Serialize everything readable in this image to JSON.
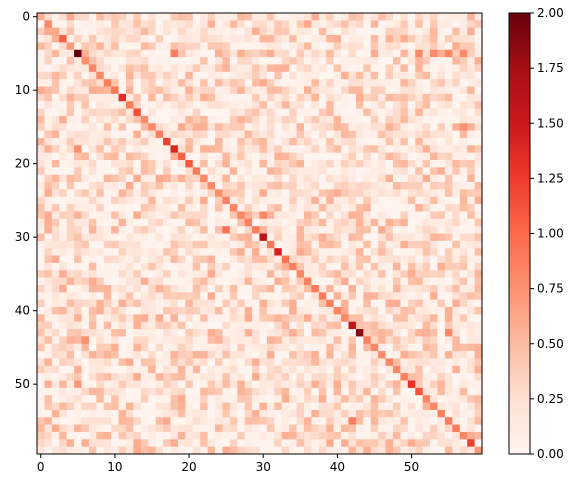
{
  "chart_data": {
    "type": "heatmap",
    "title": "",
    "xlabel": "",
    "ylabel": "",
    "rows": 60,
    "cols": 60,
    "x_ticks": [
      "0",
      "10",
      "20",
      "30",
      "40",
      "50"
    ],
    "x_tick_values": [
      0,
      10,
      20,
      30,
      40,
      50
    ],
    "y_ticks": [
      "0",
      "10",
      "20",
      "30",
      "40",
      "50"
    ],
    "y_tick_values": [
      0,
      10,
      20,
      30,
      40,
      50
    ],
    "colormap": "Reds",
    "colormap_stops": [
      "#fff5f0",
      "#fee0d2",
      "#fcbba1",
      "#fc9272",
      "#fb6a4a",
      "#ef3b2c",
      "#cb181d",
      "#a50f15",
      "#67000d"
    ],
    "vmin": 0.0,
    "vmax": 2.0,
    "colorbar_ticks": [
      "0.00",
      "0.25",
      "0.50",
      "0.75",
      "1.00",
      "1.25",
      "1.50",
      "1.75",
      "2.00"
    ],
    "colorbar_tick_values": [
      0.0,
      0.25,
      0.5,
      0.75,
      1.0,
      1.25,
      1.5,
      1.75,
      2.0
    ],
    "diagonal": [
      0.58,
      0.82,
      0.62,
      1.05,
      0.72,
      2.0,
      0.78,
      0.82,
      0.82,
      0.86,
      0.92,
      1.35,
      0.88,
      1.15,
      0.78,
      0.8,
      0.86,
      1.22,
      1.38,
      1.05,
      1.1,
      0.9,
      0.82,
      0.8,
      0.78,
      0.86,
      0.84,
      0.82,
      0.86,
      0.88,
      1.62,
      0.92,
      1.45,
      0.95,
      0.86,
      0.82,
      0.84,
      0.92,
      0.88,
      0.86,
      0.84,
      0.82,
      1.58,
      1.88,
      0.86,
      0.82,
      0.8,
      0.84,
      0.82,
      0.86,
      1.32,
      1.12,
      0.84,
      0.82,
      0.86,
      0.88,
      0.9,
      0.82,
      1.22,
      0.72
    ],
    "off_diagonal_typical_range": [
      0.0,
      0.6
    ],
    "off_diagonal_highlights": [
      {
        "row": 5,
        "col": 18,
        "value": 0.88
      },
      {
        "row": 5,
        "col": 51,
        "value": 0.82
      },
      {
        "row": 5,
        "col": 53,
        "value": 0.8
      },
      {
        "row": 5,
        "col": 55,
        "value": 0.82
      },
      {
        "row": 5,
        "col": 57,
        "value": 0.8
      },
      {
        "row": 15,
        "col": 57,
        "value": 0.75
      },
      {
        "row": 18,
        "col": 5,
        "value": 0.78
      },
      {
        "row": 29,
        "col": 25,
        "value": 0.95
      },
      {
        "row": 27,
        "col": 30,
        "value": 0.82
      },
      {
        "row": 43,
        "col": 55,
        "value": 0.82
      },
      {
        "row": 44,
        "col": 6,
        "value": 0.78
      },
      {
        "row": 50,
        "col": 5,
        "value": 0.72
      },
      {
        "row": 55,
        "col": 42,
        "value": 0.88
      }
    ]
  }
}
